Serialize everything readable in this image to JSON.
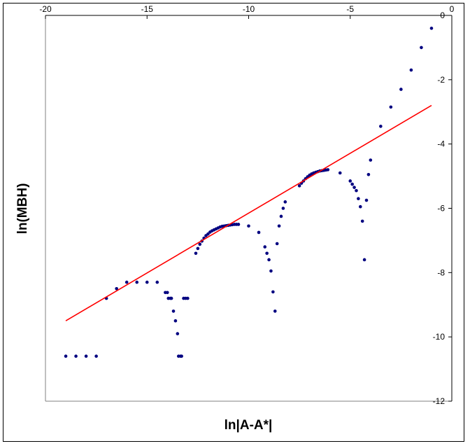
{
  "chart_data": {
    "type": "scatter",
    "xlabel": "ln|A-A*|",
    "ylabel": "ln(MBH)",
    "xlim": [
      -20,
      0
    ],
    "ylim": [
      -12,
      0
    ],
    "x_ticks": [
      -20,
      -15,
      -10,
      -5,
      0
    ],
    "y_ticks": [
      0,
      -2,
      -4,
      -6,
      -8,
      -10,
      -12
    ],
    "x_axis_position": "top",
    "y_axis_position": "right",
    "grid": false,
    "series": [
      {
        "kind": "scatter",
        "color": "#000080",
        "points": [
          [
            -19.0,
            -10.6
          ],
          [
            -18.5,
            -10.6
          ],
          [
            -18.0,
            -10.6
          ],
          [
            -17.5,
            -10.6
          ],
          [
            -17.0,
            -8.8
          ],
          [
            -16.5,
            -8.5
          ],
          [
            -16.0,
            -8.3
          ],
          [
            -15.5,
            -8.3
          ],
          [
            -15.0,
            -8.3
          ],
          [
            -14.5,
            -8.3
          ],
          [
            -14.1,
            -8.62
          ],
          [
            -14.0,
            -8.62
          ],
          [
            -13.95,
            -8.8
          ],
          [
            -13.85,
            -8.8
          ],
          [
            -13.8,
            -8.8
          ],
          [
            -13.7,
            -9.2
          ],
          [
            -13.6,
            -9.5
          ],
          [
            -13.5,
            -9.9
          ],
          [
            -13.45,
            -10.6
          ],
          [
            -13.35,
            -10.6
          ],
          [
            -13.3,
            -10.6
          ],
          [
            -13.2,
            -8.8
          ],
          [
            -13.1,
            -8.8
          ],
          [
            -13.0,
            -8.8
          ],
          [
            -12.6,
            -7.4
          ],
          [
            -12.5,
            -7.25
          ],
          [
            -12.4,
            -7.12
          ],
          [
            -12.3,
            -7.02
          ],
          [
            -12.2,
            -6.93
          ],
          [
            -12.1,
            -6.85
          ],
          [
            -12.0,
            -6.8
          ],
          [
            -11.9,
            -6.74
          ],
          [
            -11.8,
            -6.7
          ],
          [
            -11.7,
            -6.67
          ],
          [
            -11.6,
            -6.64
          ],
          [
            -11.5,
            -6.61
          ],
          [
            -11.4,
            -6.58
          ],
          [
            -11.3,
            -6.56
          ],
          [
            -11.2,
            -6.55
          ],
          [
            -11.1,
            -6.54
          ],
          [
            -11.0,
            -6.53
          ],
          [
            -10.9,
            -6.52
          ],
          [
            -10.8,
            -6.51
          ],
          [
            -10.7,
            -6.5
          ],
          [
            -10.6,
            -6.5
          ],
          [
            -10.5,
            -6.5
          ],
          [
            -10.0,
            -6.55
          ],
          [
            -9.5,
            -6.75
          ],
          [
            -9.2,
            -7.2
          ],
          [
            -9.1,
            -7.4
          ],
          [
            -9.0,
            -7.6
          ],
          [
            -8.9,
            -7.95
          ],
          [
            -8.8,
            -8.6
          ],
          [
            -8.7,
            -9.2
          ],
          [
            -8.6,
            -7.1
          ],
          [
            -8.5,
            -6.55
          ],
          [
            -8.4,
            -6.25
          ],
          [
            -8.3,
            -6.0
          ],
          [
            -8.2,
            -5.8
          ],
          [
            -7.5,
            -5.3
          ],
          [
            -7.4,
            -5.22
          ],
          [
            -7.3,
            -5.15
          ],
          [
            -7.2,
            -5.08
          ],
          [
            -7.1,
            -5.02
          ],
          [
            -7.0,
            -4.97
          ],
          [
            -6.9,
            -4.93
          ],
          [
            -6.8,
            -4.9
          ],
          [
            -6.7,
            -4.88
          ],
          [
            -6.6,
            -4.86
          ],
          [
            -6.5,
            -4.84
          ],
          [
            -6.4,
            -4.83
          ],
          [
            -6.3,
            -4.82
          ],
          [
            -6.2,
            -4.81
          ],
          [
            -6.1,
            -4.8
          ],
          [
            -5.5,
            -4.9
          ],
          [
            -5.0,
            -5.15
          ],
          [
            -4.9,
            -5.25
          ],
          [
            -4.8,
            -5.35
          ],
          [
            -4.7,
            -5.45
          ],
          [
            -4.6,
            -5.7
          ],
          [
            -4.5,
            -5.95
          ],
          [
            -4.4,
            -6.4
          ],
          [
            -4.3,
            -7.6
          ],
          [
            -4.2,
            -5.75
          ],
          [
            -4.1,
            -4.95
          ],
          [
            -4.0,
            -4.5
          ],
          [
            -3.5,
            -3.45
          ],
          [
            -3.0,
            -2.85
          ],
          [
            -2.5,
            -2.3
          ],
          [
            -2.0,
            -1.7
          ],
          [
            -1.5,
            -1.0
          ],
          [
            -1.0,
            -0.4
          ]
        ]
      },
      {
        "kind": "line",
        "color": "#ff0000",
        "points": [
          [
            -19.0,
            -9.5
          ],
          [
            -1.0,
            -2.8
          ]
        ]
      }
    ]
  }
}
